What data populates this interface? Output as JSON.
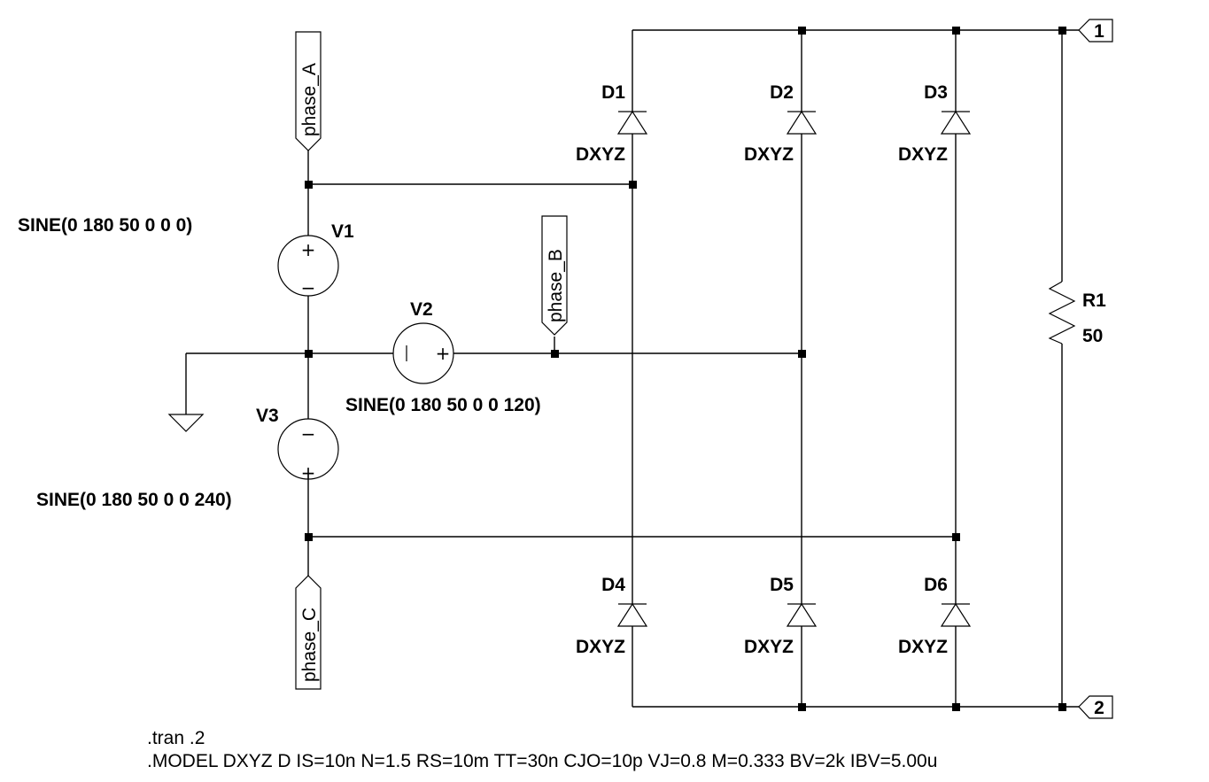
{
  "nets": {
    "phase_a": "phase_A",
    "phase_b": "phase_B",
    "phase_c": "phase_C"
  },
  "ports": {
    "p1": "1",
    "p2": "2"
  },
  "sources": [
    {
      "name": "V1",
      "value": "SINE(0 180 50 0 0 0)"
    },
    {
      "name": "V2",
      "value": "SINE(0 180 50 0 0 120)"
    },
    {
      "name": "V3",
      "value": "SINE(0 180 50 0 0 240)"
    }
  ],
  "diodes": [
    {
      "name": "D1",
      "model": "DXYZ"
    },
    {
      "name": "D2",
      "model": "DXYZ"
    },
    {
      "name": "D3",
      "model": "DXYZ"
    },
    {
      "name": "D4",
      "model": "DXYZ"
    },
    {
      "name": "D5",
      "model": "DXYZ"
    },
    {
      "name": "D6",
      "model": "DXYZ"
    }
  ],
  "resistor": {
    "name": "R1",
    "value": "50"
  },
  "polarity": {
    "plus": "+",
    "minus": "−"
  },
  "directives": {
    "tran": ".tran .2",
    "model": ".MODEL DXYZ D IS=10n N=1.5 RS=10m TT=30n CJO=10p VJ=0.8 M=0.333 BV=2k IBV=5.00u"
  }
}
